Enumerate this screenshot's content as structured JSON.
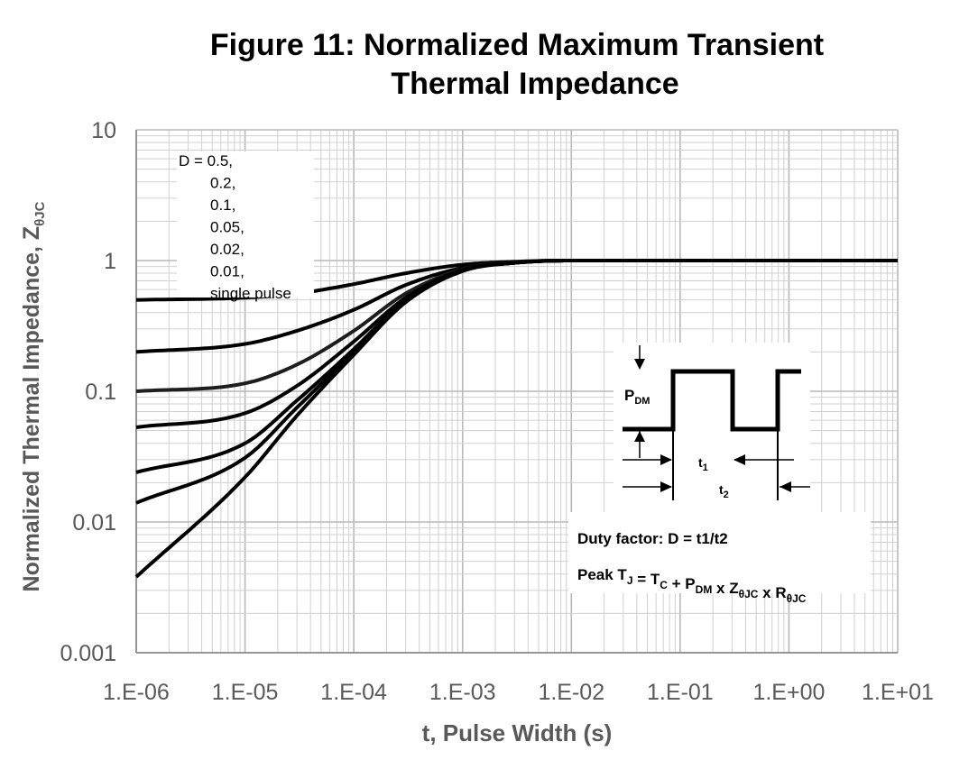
{
  "chart_data": {
    "type": "line",
    "title_line1": "Figure 11: Normalized Maximum Transient",
    "title_line2": "Thermal Impedance",
    "ylabel": "Normalized Thermal Impedance, Z",
    "ylabel_sub": "θJC",
    "xlabel": "t, Pulse Width (s)",
    "x_scale": "log",
    "y_scale": "log",
    "xlim": [
      1e-06,
      10
    ],
    "ylim": [
      0.001,
      10
    ],
    "x_ticks": [
      1e-06,
      1e-05,
      0.0001,
      0.001,
      0.01,
      0.1,
      1,
      10
    ],
    "x_tick_labels": [
      "1.E-06",
      "1.E-05",
      "1.E-04",
      "1.E-03",
      "1.E-02",
      "1.E-01",
      "1.E+00",
      "1.E+01"
    ],
    "y_ticks": [
      10,
      1,
      0.1,
      0.01,
      0.001
    ],
    "y_tick_labels": [
      "10",
      "1",
      "0.1",
      "0.01",
      "0.001"
    ],
    "grid": true,
    "legend_lines": [
      "D = 0.5,",
      "0.2,",
      "0.1,",
      "0.05,",
      "0.02,",
      "0.01,",
      "single pulse"
    ],
    "series": [
      {
        "name": "D = 0.5",
        "x": [
          1e-06,
          1e-05,
          3e-05,
          0.0001,
          0.0003,
          0.001,
          0.003,
          0.01,
          10
        ],
        "y": [
          0.5,
          0.52,
          0.56,
          0.66,
          0.8,
          0.93,
          0.98,
          1.0,
          1.0
        ]
      },
      {
        "name": "0.2",
        "x": [
          1e-06,
          1e-05,
          3e-05,
          0.0001,
          0.0003,
          0.001,
          0.003,
          0.01,
          10
        ],
        "y": [
          0.2,
          0.23,
          0.29,
          0.42,
          0.65,
          0.88,
          0.97,
          1.0,
          1.0
        ]
      },
      {
        "name": "0.1",
        "x": [
          1e-06,
          1e-05,
          3e-05,
          0.0001,
          0.0003,
          0.001,
          0.003,
          0.01,
          10
        ],
        "y": [
          0.1,
          0.115,
          0.16,
          0.29,
          0.56,
          0.86,
          0.97,
          1.0,
          1.0
        ]
      },
      {
        "name": "0.05",
        "x": [
          1e-06,
          1e-05,
          3e-05,
          0.0001,
          0.0003,
          0.001,
          0.003,
          0.01,
          10
        ],
        "y": [
          0.053,
          0.068,
          0.11,
          0.24,
          0.52,
          0.85,
          0.96,
          1.0,
          1.0
        ]
      },
      {
        "name": "0.02",
        "x": [
          1e-06,
          1e-05,
          3e-05,
          0.0001,
          0.0003,
          0.001,
          0.003,
          0.01,
          10
        ],
        "y": [
          0.024,
          0.04,
          0.085,
          0.21,
          0.5,
          0.84,
          0.96,
          1.0,
          1.0
        ]
      },
      {
        "name": "0.01",
        "x": [
          1e-06,
          1e-05,
          3e-05,
          0.0001,
          0.0003,
          0.001,
          0.003,
          0.01,
          10
        ],
        "y": [
          0.014,
          0.031,
          0.075,
          0.2,
          0.49,
          0.84,
          0.96,
          1.0,
          1.0
        ]
      },
      {
        "name": "single pulse",
        "x": [
          1e-06,
          1e-05,
          3e-05,
          0.0001,
          0.0003,
          0.001,
          0.003,
          0.01,
          10
        ],
        "y": [
          0.0038,
          0.022,
          0.065,
          0.19,
          0.48,
          0.83,
          0.96,
          1.0,
          1.0
        ]
      }
    ],
    "inset": {
      "pdm": "P",
      "pdm_sub": "DM",
      "t1": "t",
      "t1_sub": "1",
      "t2": "t",
      "t2_sub": "2",
      "duty": "Duty factor: D = t1/t2",
      "peak_parts": [
        {
          "t": "Peak T",
          "s": "J"
        },
        {
          "t": " = T",
          "s": "C"
        },
        {
          "t": " + P",
          "s": "DM"
        },
        {
          "t": " x Z",
          "s": "θJC"
        },
        {
          "t": " x R",
          "s": "θJC"
        }
      ]
    }
  },
  "colors": {
    "curve": "#000000",
    "grid": "#d0d0d0",
    "axis": "#808080",
    "text": "#595959"
  }
}
